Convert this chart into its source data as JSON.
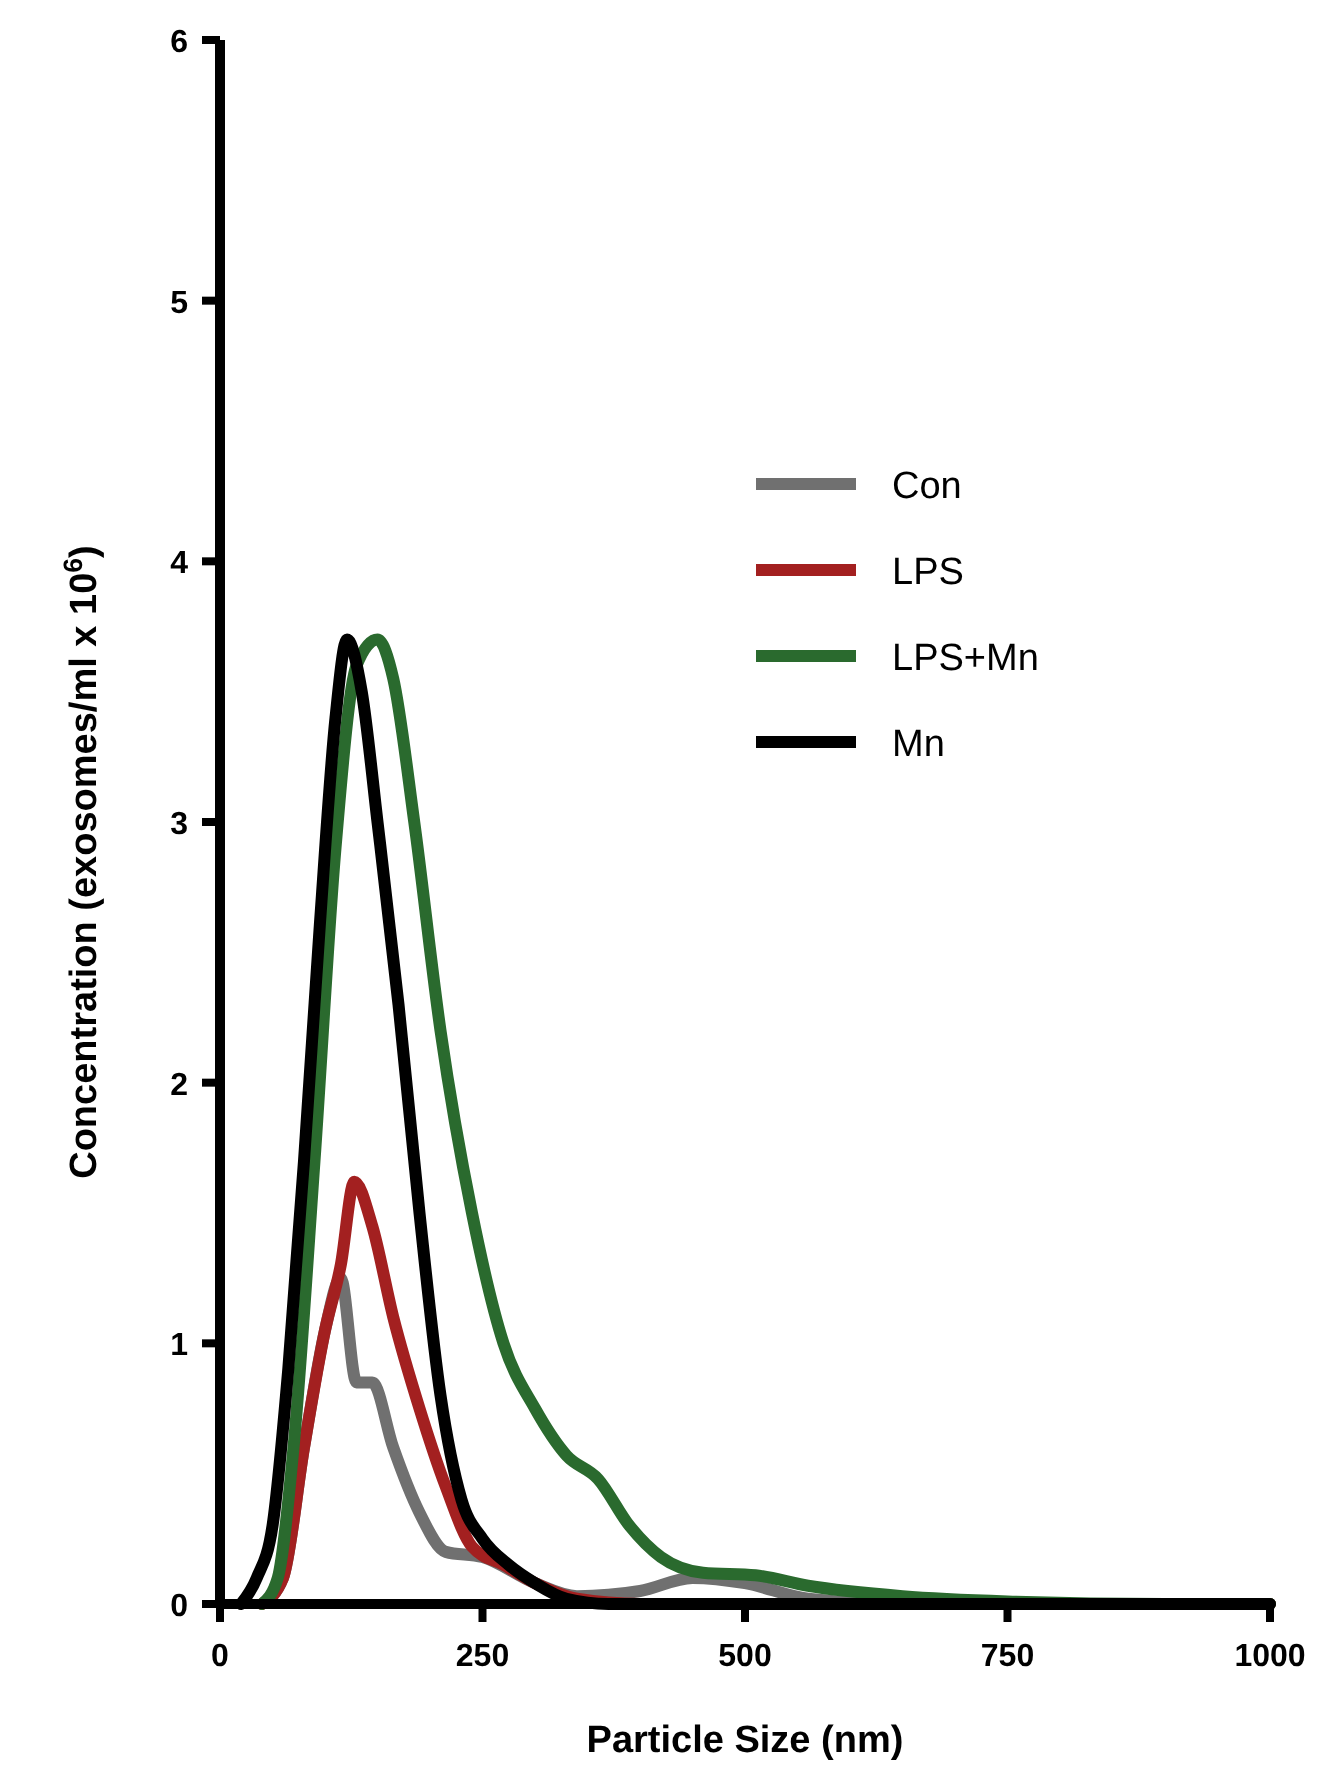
{
  "chart_data": {
    "type": "line",
    "xlabel": "Particle Size (nm)",
    "ylabel": "Concentration (exosomes/ml x 10$^{6}$)",
    "xlim": [
      0,
      1000
    ],
    "xticks": [
      0,
      250,
      500,
      750,
      1000
    ],
    "ylim": [
      0,
      6
    ],
    "yticks": [
      0,
      1,
      2,
      3,
      4,
      5,
      6
    ],
    "grid": false,
    "legend": "right",
    "marker": "none",
    "line_style": "solid",
    "series": [
      {
        "name": "Con",
        "color": "#707070",
        "x": [
          40,
          60,
          80,
          100,
          115,
          130,
          145,
          165,
          190,
          215,
          250,
          300,
          340,
          400,
          450,
          500,
          560,
          650,
          1000
        ],
        "values": [
          0,
          0.1,
          0.6,
          1.05,
          1.25,
          0.85,
          0.85,
          0.6,
          0.35,
          0.2,
          0.18,
          0.08,
          0.03,
          0.05,
          0.1,
          0.08,
          0.02,
          0,
          0
        ]
      },
      {
        "name": "LPS",
        "color": "#a32020",
        "x": [
          40,
          60,
          80,
          100,
          115,
          128,
          145,
          165,
          190,
          215,
          240,
          270,
          300,
          340,
          400,
          1000
        ],
        "values": [
          0,
          0.1,
          0.6,
          1.05,
          1.3,
          1.62,
          1.45,
          1.1,
          0.75,
          0.45,
          0.22,
          0.15,
          0.08,
          0.02,
          0,
          0
        ]
      },
      {
        "name": "LPS+Mn",
        "color": "#2a6a2e",
        "x": [
          40,
          55,
          70,
          90,
          110,
          130,
          150,
          165,
          185,
          210,
          240,
          270,
          300,
          330,
          360,
          390,
          420,
          460,
          510,
          560,
          650,
          750,
          900,
          1000
        ],
        "values": [
          0,
          0.1,
          0.6,
          1.7,
          2.9,
          3.6,
          3.7,
          3.55,
          3.0,
          2.2,
          1.5,
          1.0,
          0.75,
          0.57,
          0.48,
          0.3,
          0.18,
          0.12,
          0.11,
          0.07,
          0.03,
          0.01,
          0,
          0
        ]
      },
      {
        "name": "Mn",
        "color": "#000000",
        "x": [
          20,
          35,
          50,
          65,
          80,
          95,
          110,
          121,
          135,
          150,
          170,
          190,
          210,
          230,
          250,
          275,
          300,
          330,
          370,
          1000
        ],
        "values": [
          0,
          0.1,
          0.3,
          0.9,
          1.7,
          2.6,
          3.4,
          3.7,
          3.5,
          3.0,
          2.3,
          1.5,
          0.8,
          0.4,
          0.25,
          0.15,
          0.08,
          0.02,
          0,
          0
        ]
      }
    ]
  }
}
